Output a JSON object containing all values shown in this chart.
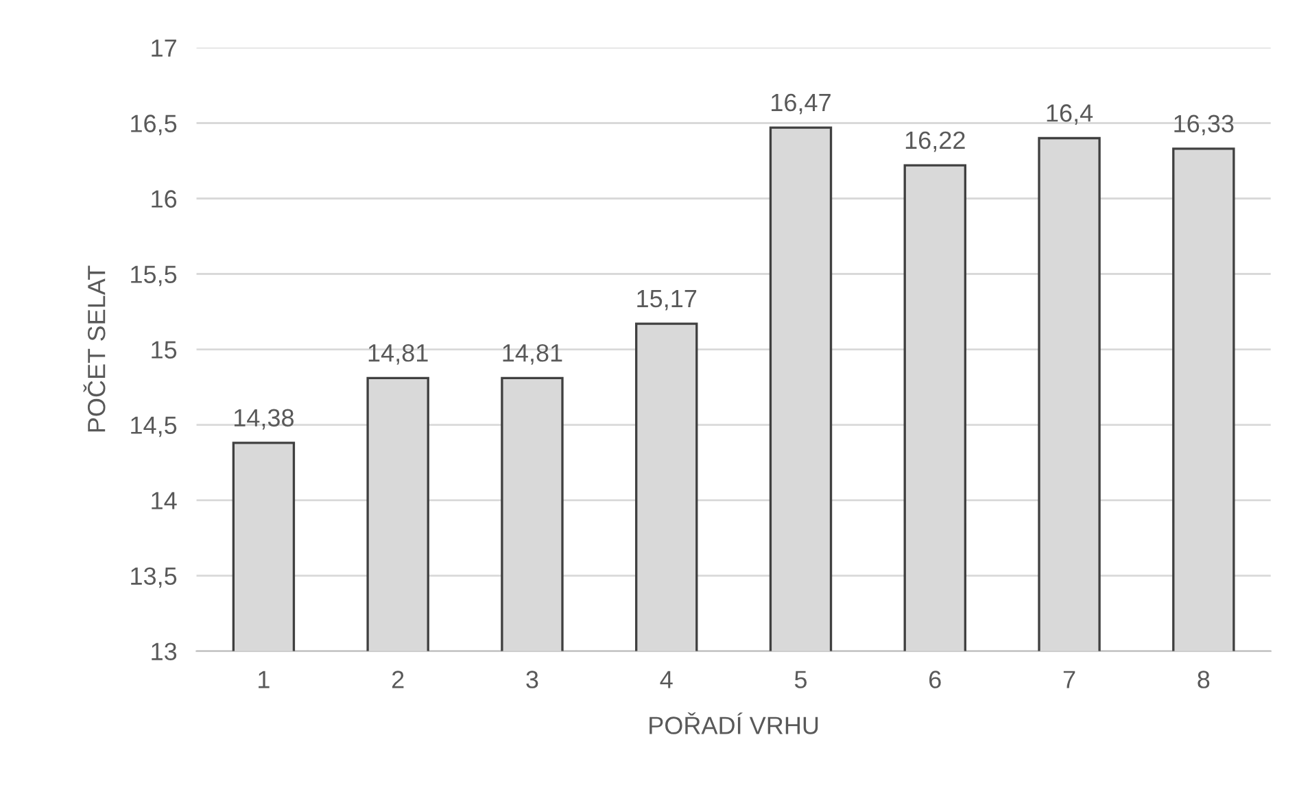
{
  "chart_data": {
    "type": "bar",
    "xlabel": "POŘADÍ VRHU",
    "ylabel": "POČET SELAT",
    "categories": [
      "1",
      "2",
      "3",
      "4",
      "5",
      "6",
      "7",
      "8"
    ],
    "values": [
      14.38,
      14.81,
      14.81,
      15.17,
      16.47,
      16.22,
      16.4,
      16.33
    ],
    "value_labels": [
      "14,38",
      "14,81",
      "14,81",
      "15,17",
      "16,47",
      "16,22",
      "16,4",
      "16,33"
    ],
    "color": "#d9d9d9",
    "ylim": [
      13,
      17
    ],
    "yticks": [
      13,
      {
        "value": 13.5,
        "label": "13,5"
      },
      14,
      {
        "value": 14.5,
        "label": "14,5"
      },
      15,
      {
        "value": 15.5,
        "label": "15,5"
      },
      16,
      {
        "value": 16.5,
        "label": "16,5"
      },
      17
    ],
    "grid": "y",
    "legend": false
  }
}
